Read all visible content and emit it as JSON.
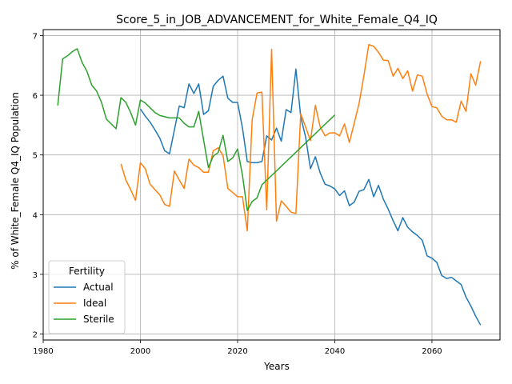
{
  "chart_data": {
    "type": "line",
    "title": "Score_5_in_JOB_ADVANCEMENT_for_White_Female_Q4_IQ",
    "xlabel": "Years",
    "ylabel": "% of White_Female Q4_IQ Population",
    "xlim": [
      1980,
      2074
    ],
    "ylim": [
      1.9,
      7.1
    ],
    "xticks": [
      1980,
      2000,
      2020,
      2040,
      2060
    ],
    "yticks": [
      2,
      3,
      4,
      5,
      6,
      7
    ],
    "grid": true,
    "legend": {
      "title": "Fertility",
      "position": "lower-left"
    },
    "series": [
      {
        "name": "Actual",
        "color": "#1f77b4",
        "points": [
          [
            2000,
            5.77
          ],
          [
            2001,
            5.65
          ],
          [
            2002,
            5.55
          ],
          [
            2003,
            5.42
          ],
          [
            2004,
            5.28
          ],
          [
            2005,
            5.07
          ],
          [
            2006,
            5.02
          ],
          [
            2007,
            5.42
          ],
          [
            2008,
            5.82
          ],
          [
            2009,
            5.79
          ],
          [
            2010,
            6.19
          ],
          [
            2011,
            6.03
          ],
          [
            2012,
            6.19
          ],
          [
            2013,
            5.68
          ],
          [
            2014,
            5.74
          ],
          [
            2015,
            6.15
          ],
          [
            2016,
            6.25
          ],
          [
            2017,
            6.32
          ],
          [
            2018,
            5.95
          ],
          [
            2019,
            5.88
          ],
          [
            2020,
            5.88
          ],
          [
            2021,
            5.45
          ],
          [
            2022,
            4.89
          ],
          [
            2023,
            4.87
          ],
          [
            2024,
            4.87
          ],
          [
            2025,
            4.89
          ],
          [
            2026,
            5.32
          ],
          [
            2027,
            5.25
          ],
          [
            2028,
            5.45
          ],
          [
            2029,
            5.23
          ],
          [
            2030,
            5.76
          ],
          [
            2031,
            5.71
          ],
          [
            2032,
            6.44
          ],
          [
            2033,
            5.64
          ],
          [
            2034,
            5.3
          ],
          [
            2035,
            4.77
          ],
          [
            2036,
            4.97
          ],
          [
            2037,
            4.7
          ],
          [
            2038,
            4.51
          ],
          [
            2039,
            4.48
          ],
          [
            2040,
            4.43
          ],
          [
            2041,
            4.32
          ],
          [
            2042,
            4.4
          ],
          [
            2043,
            4.15
          ],
          [
            2044,
            4.21
          ],
          [
            2045,
            4.39
          ],
          [
            2046,
            4.42
          ],
          [
            2047,
            4.59
          ],
          [
            2048,
            4.3
          ],
          [
            2049,
            4.49
          ],
          [
            2050,
            4.26
          ],
          [
            2051,
            4.09
          ],
          [
            2052,
            3.9
          ],
          [
            2053,
            3.73
          ],
          [
            2054,
            3.95
          ],
          [
            2055,
            3.79
          ],
          [
            2056,
            3.71
          ],
          [
            2057,
            3.65
          ],
          [
            2058,
            3.57
          ],
          [
            2059,
            3.31
          ],
          [
            2060,
            3.27
          ],
          [
            2061,
            3.2
          ],
          [
            2062,
            2.98
          ],
          [
            2063,
            2.93
          ],
          [
            2064,
            2.95
          ],
          [
            2065,
            2.89
          ],
          [
            2066,
            2.83
          ],
          [
            2067,
            2.62
          ],
          [
            2068,
            2.47
          ],
          [
            2069,
            2.3
          ],
          [
            2070,
            2.15
          ]
        ]
      },
      {
        "name": "Ideal",
        "color": "#ff7f0e",
        "points": [
          [
            1996,
            4.85
          ],
          [
            1997,
            4.58
          ],
          [
            1998,
            4.42
          ],
          [
            1999,
            4.24
          ],
          [
            2000,
            4.87
          ],
          [
            2001,
            4.77
          ],
          [
            2002,
            4.51
          ],
          [
            2003,
            4.42
          ],
          [
            2004,
            4.33
          ],
          [
            2005,
            4.17
          ],
          [
            2006,
            4.14
          ],
          [
            2007,
            4.73
          ],
          [
            2008,
            4.58
          ],
          [
            2009,
            4.44
          ],
          [
            2010,
            4.93
          ],
          [
            2011,
            4.83
          ],
          [
            2012,
            4.79
          ],
          [
            2013,
            4.71
          ],
          [
            2014,
            4.71
          ],
          [
            2015,
            5.07
          ],
          [
            2016,
            5.12
          ],
          [
            2017,
            4.99
          ],
          [
            2018,
            4.44
          ],
          [
            2019,
            4.37
          ],
          [
            2020,
            4.3
          ],
          [
            2021,
            4.3
          ],
          [
            2022,
            3.73
          ],
          [
            2023,
            5.59
          ],
          [
            2024,
            6.04
          ],
          [
            2025,
            6.05
          ],
          [
            2026,
            4.08
          ],
          [
            2027,
            6.77
          ],
          [
            2028,
            3.89
          ],
          [
            2029,
            4.23
          ],
          [
            2030,
            4.14
          ],
          [
            2031,
            4.04
          ],
          [
            2032,
            4.02
          ],
          [
            2033,
            5.69
          ],
          [
            2034,
            5.47
          ],
          [
            2035,
            5.24
          ],
          [
            2036,
            5.83
          ],
          [
            2037,
            5.47
          ],
          [
            2038,
            5.32
          ],
          [
            2039,
            5.37
          ],
          [
            2040,
            5.37
          ],
          [
            2041,
            5.32
          ],
          [
            2042,
            5.52
          ],
          [
            2043,
            5.21
          ],
          [
            2044,
            5.53
          ],
          [
            2045,
            5.86
          ],
          [
            2046,
            6.33
          ],
          [
            2047,
            6.85
          ],
          [
            2048,
            6.82
          ],
          [
            2049,
            6.72
          ],
          [
            2050,
            6.59
          ],
          [
            2051,
            6.58
          ],
          [
            2052,
            6.32
          ],
          [
            2053,
            6.45
          ],
          [
            2054,
            6.28
          ],
          [
            2055,
            6.41
          ],
          [
            2056,
            6.07
          ],
          [
            2057,
            6.34
          ],
          [
            2058,
            6.32
          ],
          [
            2059,
            6.02
          ],
          [
            2060,
            5.81
          ],
          [
            2061,
            5.79
          ],
          [
            2062,
            5.65
          ],
          [
            2063,
            5.59
          ],
          [
            2064,
            5.59
          ],
          [
            2065,
            5.55
          ],
          [
            2066,
            5.9
          ],
          [
            2067,
            5.73
          ],
          [
            2068,
            6.36
          ],
          [
            2069,
            6.17
          ],
          [
            2070,
            6.57
          ]
        ]
      },
      {
        "name": "Sterile",
        "color": "#2ca02c",
        "points": [
          [
            1983,
            5.83
          ],
          [
            1984,
            6.61
          ],
          [
            1985,
            6.66
          ],
          [
            1986,
            6.73
          ],
          [
            1987,
            6.78
          ],
          [
            1988,
            6.55
          ],
          [
            1989,
            6.4
          ],
          [
            1990,
            6.17
          ],
          [
            1991,
            6.07
          ],
          [
            1992,
            5.88
          ],
          [
            1993,
            5.6
          ],
          [
            1994,
            5.52
          ],
          [
            1995,
            5.44
          ],
          [
            1996,
            5.96
          ],
          [
            1997,
            5.88
          ],
          [
            1998,
            5.71
          ],
          [
            1999,
            5.5
          ],
          [
            2000,
            5.92
          ],
          [
            2001,
            5.87
          ],
          [
            2002,
            5.79
          ],
          [
            2003,
            5.71
          ],
          [
            2004,
            5.66
          ],
          [
            2005,
            5.64
          ],
          [
            2006,
            5.62
          ],
          [
            2007,
            5.62
          ],
          [
            2008,
            5.62
          ],
          [
            2009,
            5.53
          ],
          [
            2010,
            5.47
          ],
          [
            2011,
            5.47
          ],
          [
            2012,
            5.73
          ],
          [
            2013,
            5.25
          ],
          [
            2014,
            4.79
          ],
          [
            2015,
            4.98
          ],
          [
            2016,
            5.04
          ],
          [
            2017,
            5.33
          ],
          [
            2018,
            4.89
          ],
          [
            2019,
            4.95
          ],
          [
            2020,
            5.1
          ],
          [
            2021,
            4.66
          ],
          [
            2022,
            4.07
          ],
          [
            2023,
            4.22
          ],
          [
            2024,
            4.28
          ],
          [
            2025,
            4.5
          ],
          [
            2040,
            5.67
          ]
        ]
      }
    ]
  }
}
